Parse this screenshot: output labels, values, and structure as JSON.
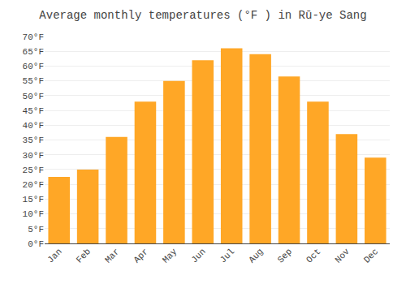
{
  "chart_data": {
    "type": "bar",
    "title": "Average monthly temperatures (°F ) in Rū-ye Sang",
    "categories": [
      "Jan",
      "Feb",
      "Mar",
      "Apr",
      "May",
      "Jun",
      "Jul",
      "Aug",
      "Sep",
      "Oct",
      "Nov",
      "Dec"
    ],
    "values": [
      22.5,
      25.0,
      36.0,
      48.0,
      55.0,
      62.0,
      66.0,
      64.0,
      56.5,
      48.0,
      37.0,
      29.0
    ],
    "color": "#FFA726",
    "ylim": [
      0,
      70
    ],
    "yticks": [
      {
        "value": 0,
        "label": "0°F"
      },
      {
        "value": 5,
        "label": "5°F"
      },
      {
        "value": 10,
        "label": "10°F"
      },
      {
        "value": 15,
        "label": "15°F"
      },
      {
        "value": 20,
        "label": "20°F"
      },
      {
        "value": 25,
        "label": "25°F"
      },
      {
        "value": 30,
        "label": "30°F"
      },
      {
        "value": 35,
        "label": "35°F"
      },
      {
        "value": 40,
        "label": "40°F"
      },
      {
        "value": 45,
        "label": "45°F"
      },
      {
        "value": 50,
        "label": "50°F"
      },
      {
        "value": 55,
        "label": "55°F"
      },
      {
        "value": 60,
        "label": "60°F"
      },
      {
        "value": 65,
        "label": "65°F"
      },
      {
        "value": 70,
        "label": "70°F"
      }
    ],
    "grid": true
  }
}
